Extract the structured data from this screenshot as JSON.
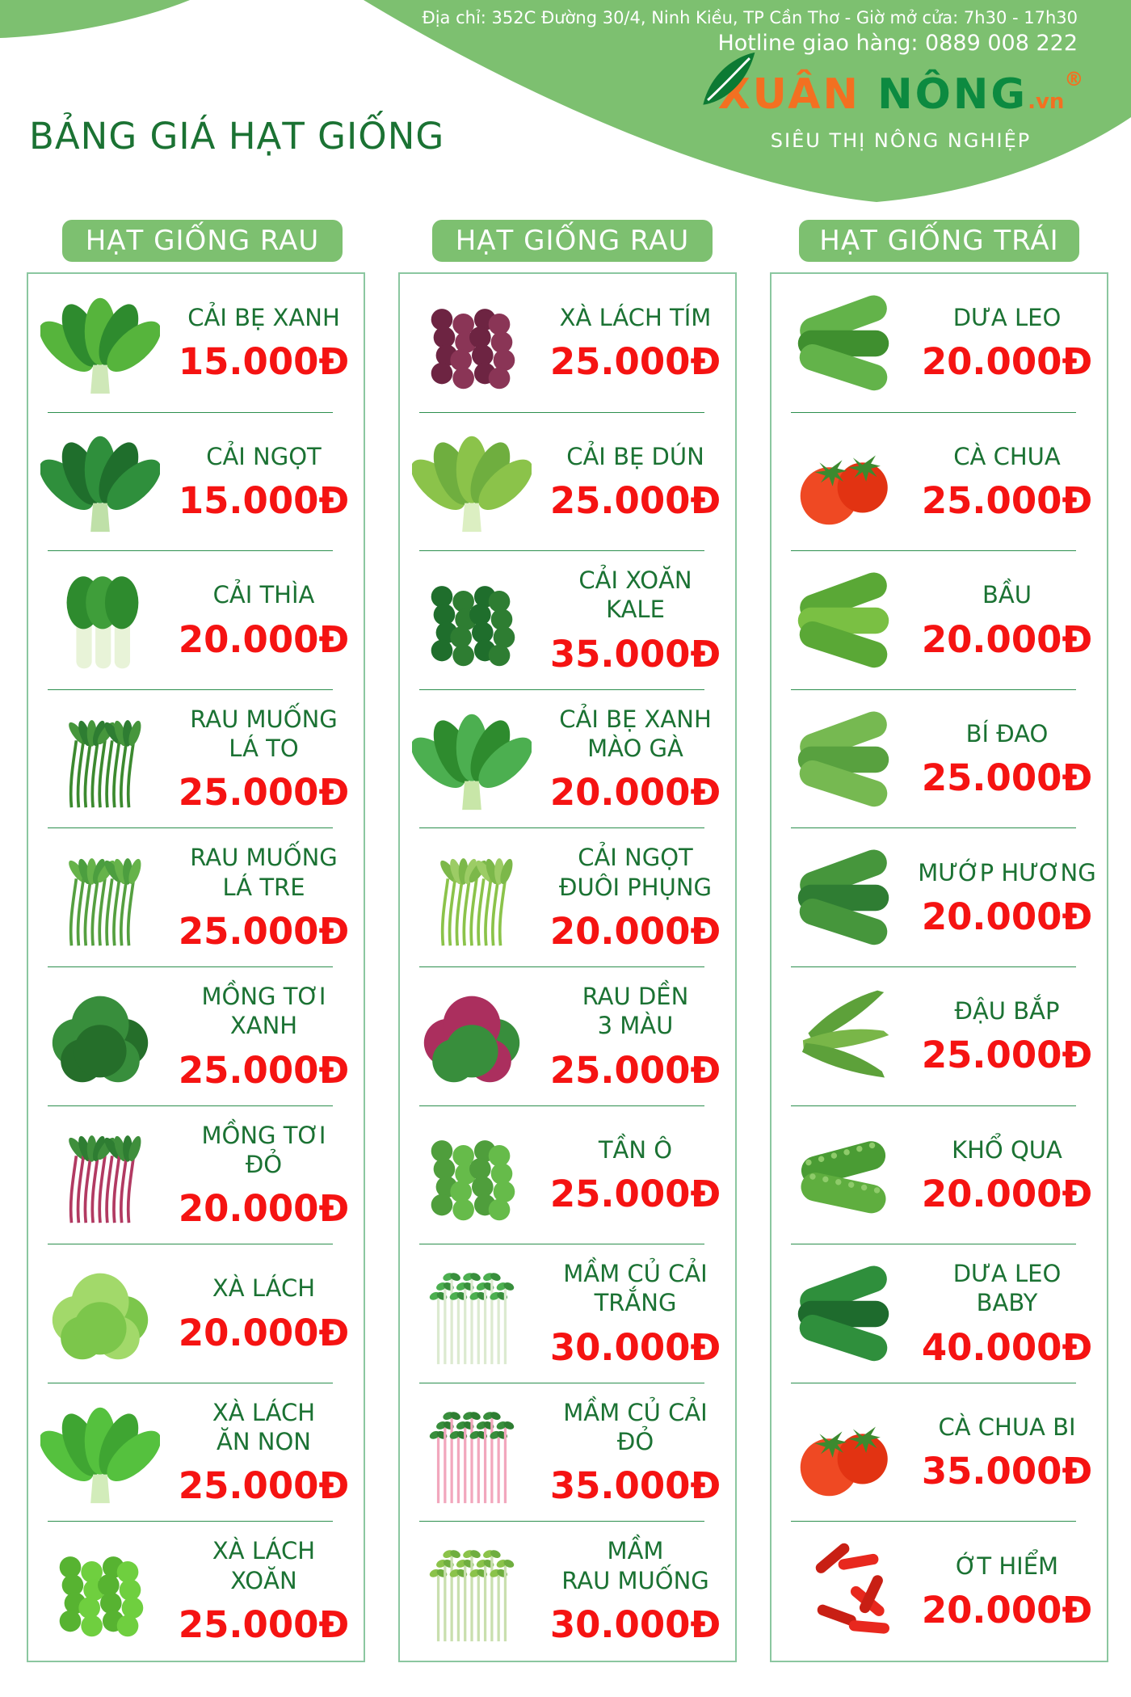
{
  "header": {
    "address": "Địa chỉ: 352C Đường 30/4, Ninh Kiều, TP Cần Thơ - Giờ mở cửa: 7h30 - 17h30",
    "hotline": "Hotline giao hàng: 0889 008 222"
  },
  "logo": {
    "part1": "XUÂN",
    "part2": " NÔNG",
    "suffix": ".vn",
    "registered": "®",
    "tagline": "SIÊU THỊ NÔNG NGHIỆP",
    "leaf_icon": "leaf-icon"
  },
  "title": "BẢNG GIÁ HẠT GIỐNG",
  "colors": {
    "banner_green": "#7dc070",
    "dark_green": "#1b7233",
    "brand_green": "#0c8a40",
    "brand_orange": "#f37021",
    "price_red": "#f51312",
    "box_border": "#8bc7a0",
    "divider_green": "#2c8f4e"
  },
  "columns": [
    {
      "header": "HẠT GIỐNG RAU",
      "items": [
        {
          "name": "CẢI BẸ XANH",
          "price": "15.000Đ",
          "veg": "leafy",
          "palette": [
            "#56b43c",
            "#2e8b2e",
            "#cfe8b8"
          ]
        },
        {
          "name": "CẢI NGỌT",
          "price": "15.000Đ",
          "veg": "leafy",
          "palette": [
            "#2f8f3c",
            "#1f6e2c",
            "#bfe0a8"
          ]
        },
        {
          "name": "CẢI THÌA",
          "price": "20.000Đ",
          "veg": "bokchoy",
          "palette": [
            "#3f9e3a",
            "#2e8b2e",
            "#e8f3d8"
          ]
        },
        {
          "name": "RAU MUỐNG\nLÁ TO",
          "price": "25.000Đ",
          "veg": "bunch",
          "palette": [
            "#2e7d32",
            "#46963c",
            "#3c8a2f"
          ]
        },
        {
          "name": "RAU MUỐNG\nLÁ TRE",
          "price": "25.000Đ",
          "veg": "bunch",
          "palette": [
            "#4c9e3f",
            "#66b34a",
            "#55a040"
          ]
        },
        {
          "name": "MỒNG TƠI\nXANH",
          "price": "25.000Đ",
          "veg": "lettuce",
          "palette": [
            "#256e2a",
            "#388e3c",
            "#2e7d32"
          ]
        },
        {
          "name": "MỒNG TƠI\nĐỎ",
          "price": "20.000Đ",
          "veg": "bunch",
          "palette": [
            "#2e7d32",
            "#3f8f3c",
            "#b23a62"
          ]
        },
        {
          "name": "XÀ LÁCH",
          "price": "20.000Đ",
          "veg": "lettuce",
          "palette": [
            "#7cc64b",
            "#a2d96a",
            "#8bc34a"
          ]
        },
        {
          "name": "XÀ LÁCH\nĂN NON",
          "price": "25.000Đ",
          "veg": "leafy",
          "palette": [
            "#55c13e",
            "#3fa532",
            "#d2ecba"
          ]
        },
        {
          "name": "XÀ LÁCH\nXOĂN",
          "price": "25.000Đ",
          "veg": "curly",
          "palette": [
            "#6fcf3f",
            "#57b331",
            "#8bdc5a"
          ]
        }
      ]
    },
    {
      "header": "HẠT GIỐNG RAU",
      "items": [
        {
          "name": "XÀ LÁCH TÍM",
          "price": "25.000Đ",
          "veg": "curly",
          "palette": [
            "#8a3556",
            "#6d2442",
            "#a84f6e"
          ]
        },
        {
          "name": "CẢI BẸ DÚN",
          "price": "25.000Đ",
          "veg": "leafy",
          "palette": [
            "#8bc34a",
            "#6fae3f",
            "#dcefc2"
          ]
        },
        {
          "name": "CẢI XOĂN\nKALE",
          "price": "35.000Đ",
          "veg": "curly",
          "palette": [
            "#2e7d32",
            "#1f6e2c",
            "#3f8f3c"
          ]
        },
        {
          "name": "CẢI BẸ XANH\nMÀO GÀ",
          "price": "20.000Đ",
          "veg": "leafy",
          "palette": [
            "#4caf50",
            "#2e8b2e",
            "#c8e6a8"
          ]
        },
        {
          "name": "CẢI NGỌT\nĐUÔI PHỤNG",
          "price": "20.000Đ",
          "veg": "bunch",
          "palette": [
            "#9ccc65",
            "#7cb84a",
            "#8bc34a"
          ]
        },
        {
          "name": "RAU DỀN\n3 MÀU",
          "price": "25.000Đ",
          "veg": "lettuce",
          "palette": [
            "#388e3c",
            "#ab2f5e",
            "#2e7d32"
          ]
        },
        {
          "name": "TẦN Ô",
          "price": "25.000Đ",
          "veg": "curly",
          "palette": [
            "#66bb4a",
            "#4f9e3c",
            "#7cc64b"
          ]
        },
        {
          "name": "MẦM CỦ CẢI\nTRẮNG",
          "price": "30.000Đ",
          "veg": "sprout",
          "palette": [
            "#4caf50",
            "#388e3c",
            "#dcead0"
          ]
        },
        {
          "name": "MẦM CỦ CẢI\nĐỎ",
          "price": "35.000Đ",
          "veg": "sprout",
          "palette": [
            "#388e3c",
            "#2e7d32",
            "#f2a7bd"
          ]
        },
        {
          "name": "MẦM\nRAU MUỐNG",
          "price": "30.000Đ",
          "veg": "sprout",
          "palette": [
            "#8bc34a",
            "#6fae3f",
            "#c9dfae"
          ]
        }
      ]
    },
    {
      "header": "HẠT GIỐNG TRÁI",
      "items": [
        {
          "name": "DƯA LEO",
          "price": "20.000Đ",
          "veg": "long",
          "palette": [
            "#3f8f2f",
            "#63b34a",
            "#4f9e3c"
          ]
        },
        {
          "name": "CÀ CHUA",
          "price": "25.000Đ",
          "veg": "round",
          "palette": [
            "#ef4923",
            "#e23312",
            "#3c8a2f"
          ]
        },
        {
          "name": "BẦU",
          "price": "20.000Đ",
          "veg": "long",
          "palette": [
            "#7ac043",
            "#5aa836",
            "#6ab53e"
          ]
        },
        {
          "name": "BÍ ĐAO",
          "price": "25.000Đ",
          "veg": "long",
          "palette": [
            "#58a13f",
            "#76b951",
            "#68ad48"
          ]
        },
        {
          "name": "MƯỚP HƯƠNG",
          "price": "20.000Đ",
          "veg": "long",
          "palette": [
            "#2f7d33",
            "#46963c",
            "#3a8a38"
          ]
        },
        {
          "name": "ĐẬU BẮP",
          "price": "25.000Đ",
          "veg": "okra",
          "palette": [
            "#79b648",
            "#5da13a",
            "#6aad42"
          ]
        },
        {
          "name": "KHỔ QUA",
          "price": "20.000Đ",
          "veg": "bumpy",
          "palette": [
            "#5fae3f",
            "#4a9c34",
            "#8ecb6a"
          ]
        },
        {
          "name": "DƯA LEO\nBABY",
          "price": "40.000Đ",
          "veg": "long",
          "palette": [
            "#1e6b2d",
            "#2f8f3c",
            "#288034"
          ]
        },
        {
          "name": "CÀ CHUA BI",
          "price": "35.000Đ",
          "veg": "round",
          "palette": [
            "#ef4923",
            "#e23312",
            "#3c8a2f"
          ]
        },
        {
          "name": "ỚT HIỂM",
          "price": "20.000Đ",
          "veg": "chili",
          "palette": [
            "#e8281e",
            "#c81f14",
            "#d42318"
          ]
        }
      ]
    }
  ]
}
